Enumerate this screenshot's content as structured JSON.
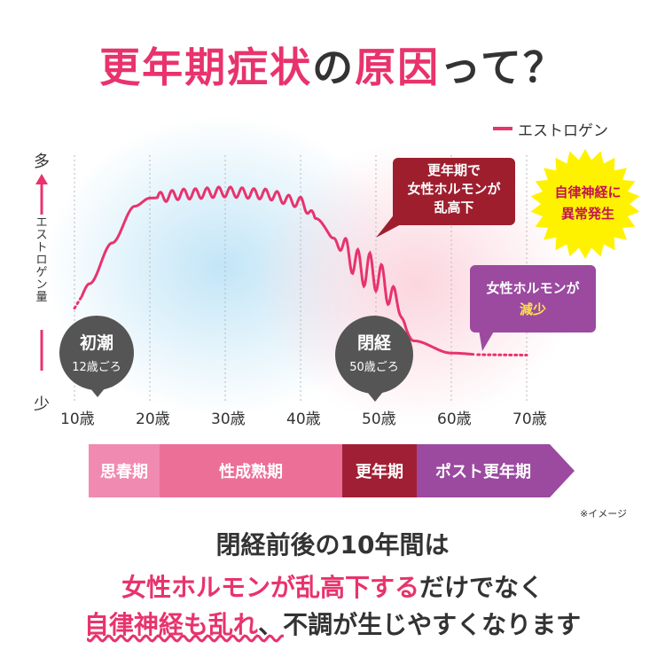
{
  "title": {
    "part1": "更年期症状",
    "part2": "の",
    "part3": "原因",
    "part4": "って？"
  },
  "legend": {
    "label": "エストロゲン"
  },
  "axis": {
    "top": "多",
    "bottom": "少",
    "label": "エストロゲン量"
  },
  "ticks": [
    "10歳",
    "20歳",
    "30歳",
    "40歳",
    "50歳",
    "60歳",
    "70歳"
  ],
  "events": {
    "menarche": {
      "title": "初潮",
      "age": "12歳ごろ"
    },
    "menopause": {
      "title": "閉経",
      "age": "50歳ごろ"
    }
  },
  "callouts": {
    "red": [
      "更年期で",
      "女性ホルモンが",
      "乱高下"
    ],
    "purple": {
      "line1": "女性ホルモンが",
      "line2": "減少"
    },
    "star": [
      "自律神経に",
      "異常発生"
    ]
  },
  "phases": [
    {
      "label": "思春期",
      "color": "#f08ab0"
    },
    {
      "label": "性成熟期",
      "color": "#ec6f98"
    },
    {
      "label": "更年期",
      "color": "#a11f34"
    },
    {
      "label": "ポスト更年期",
      "color": "#9b4aa0"
    }
  ],
  "note": "※イメージ",
  "bottom": {
    "line1": "閉経前後の10年間は",
    "line2_pink": "女性ホルモンが乱高下する",
    "line2_rest": "だけでなく",
    "line3_pink": "自律神経も乱れ",
    "line3_rest": "、不調が生じやすくなります"
  },
  "colors": {
    "accent": "#e8336d",
    "crisis": "#9e1e2e",
    "post": "#9b4aa0",
    "star": "#fff200"
  },
  "chart_data": {
    "type": "line",
    "x_ticks": [
      "10歳",
      "20歳",
      "30歳",
      "40歳",
      "50歳",
      "60歳",
      "70歳"
    ],
    "series": [
      {
        "name": "エストロゲン",
        "x": [
          10,
          12,
          15,
          18,
          20,
          25,
          30,
          35,
          40,
          42,
          45,
          48,
          50,
          52,
          55,
          60,
          65,
          70
        ],
        "y": [
          0.28,
          0.4,
          0.6,
          0.78,
          0.82,
          0.84,
          0.85,
          0.84,
          0.8,
          0.72,
          0.6,
          0.48,
          0.45,
          0.35,
          0.12,
          0.06,
          0.05,
          0.05
        ]
      }
    ]
  }
}
